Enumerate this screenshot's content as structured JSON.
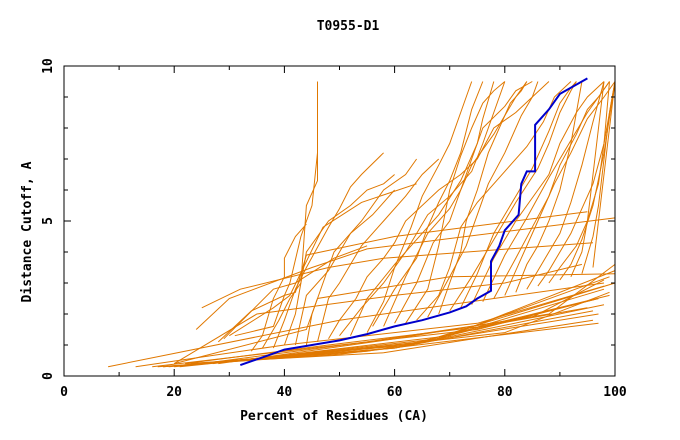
{
  "chart_data": {
    "type": "line",
    "title": "T0955-D1",
    "xlabel": "Percent of Residues (CA)",
    "ylabel": "Distance Cutoff, A",
    "xlim": [
      0,
      100
    ],
    "ylim": [
      0,
      10
    ],
    "x_ticks": [
      "0",
      "20",
      "40",
      "60",
      "80",
      "100"
    ],
    "y_ticks": [
      "0",
      "5",
      "10"
    ],
    "grid": false,
    "legend": "none",
    "colors": {
      "highlight": "#0000cc",
      "others": "#e07800",
      "axis": "#000000"
    },
    "highlight_series": {
      "x": [
        32,
        36,
        40,
        45,
        50,
        55,
        60,
        65,
        70,
        73,
        75,
        77.5,
        77.5,
        79,
        80,
        82.5,
        83,
        84,
        85.5,
        85.5,
        88,
        90,
        95
      ],
      "y": [
        0.35,
        0.6,
        0.85,
        1.0,
        1.15,
        1.35,
        1.6,
        1.8,
        2.05,
        2.25,
        2.5,
        2.75,
        3.7,
        4.2,
        4.7,
        5.2,
        6.2,
        6.6,
        6.6,
        8.1,
        8.6,
        9.1,
        9.6
      ]
    },
    "other_series": [
      {
        "x": [
          8,
          50,
          98
        ],
        "y": [
          0.3,
          1.8,
          3.0
        ]
      },
      {
        "x": [
          17,
          50,
          97
        ],
        "y": [
          0.3,
          0.7,
          1.7
        ]
      },
      {
        "x": [
          18,
          55,
          97
        ],
        "y": [
          0.3,
          0.8,
          2.0
        ]
      },
      {
        "x": [
          19,
          60,
          98
        ],
        "y": [
          0.3,
          0.9,
          2.3
        ]
      },
      {
        "x": [
          20,
          62,
          99
        ],
        "y": [
          0.3,
          1.0,
          2.6
        ]
      },
      {
        "x": [
          21,
          65,
          100
        ],
        "y": [
          0.3,
          1.1,
          3.0
        ]
      },
      {
        "x": [
          22,
          58,
          96
        ],
        "y": [
          0.4,
          0.75,
          1.8
        ]
      },
      {
        "x": [
          23,
          60,
          96
        ],
        "y": [
          0.4,
          0.9,
          2.1
        ]
      },
      {
        "x": [
          24,
          63,
          97
        ],
        "y": [
          0.4,
          1.0,
          2.5
        ]
      },
      {
        "x": [
          25,
          66,
          98
        ],
        "y": [
          0.4,
          1.1,
          2.8
        ]
      },
      {
        "x": [
          26,
          68,
          99
        ],
        "y": [
          0.4,
          1.2,
          3.2
        ]
      },
      {
        "x": [
          27,
          70,
          100
        ],
        "y": [
          0.4,
          1.3,
          3.4
        ]
      },
      {
        "x": [
          13,
          40,
          75,
          98
        ],
        "y": [
          0.3,
          1.0,
          1.7,
          2.9
        ]
      },
      {
        "x": [
          16,
          45,
          75,
          97
        ],
        "y": [
          0.3,
          0.9,
          1.5,
          2.5
        ]
      },
      {
        "x": [
          18,
          50,
          80,
          99
        ],
        "y": [
          0.3,
          0.8,
          1.4,
          2.7
        ]
      },
      {
        "x": [
          22,
          48,
          76,
          95
        ],
        "y": [
          0.4,
          1.0,
          1.6,
          2.2
        ]
      },
      {
        "x": [
          25,
          55,
          85,
          98
        ],
        "y": [
          0.4,
          1.1,
          1.9,
          3.1
        ]
      },
      {
        "x": [
          28,
          60,
          88,
          100
        ],
        "y": [
          0.4,
          1.2,
          2.0,
          3.6
        ]
      },
      {
        "x": [
          20,
          35,
          60,
          80,
          94
        ],
        "y": [
          0.4,
          2.0,
          2.6,
          3.0,
          3.6
        ]
      },
      {
        "x": [
          20,
          44,
          46,
          70,
          100
        ],
        "y": [
          0.4,
          1.5,
          2.5,
          3.2,
          3.3
        ]
      },
      {
        "x": [
          24,
          30,
          45,
          55,
          100
        ],
        "y": [
          1.5,
          2.5,
          3.5,
          4.1,
          5.1
        ]
      },
      {
        "x": [
          25,
          32,
          48,
          58,
          96
        ],
        "y": [
          2.2,
          2.8,
          3.5,
          3.8,
          4.3
        ]
      },
      {
        "x": [
          28,
          34,
          40,
          42,
          44,
          60,
          95
        ],
        "y": [
          1.1,
          2.1,
          2.6,
          2.7,
          3.9,
          4.5,
          5.3
        ]
      },
      {
        "x": [
          29,
          38,
          42,
          49,
          55
        ],
        "y": [
          1.2,
          2.8,
          3.0,
          3.8,
          4.2
        ]
      },
      {
        "x": [
          30,
          38,
          41,
          47,
          54,
          64
        ],
        "y": [
          1.3,
          2.2,
          2.6,
          4.8,
          5.6,
          6.2
        ]
      },
      {
        "x": [
          31,
          38,
          40,
          41,
          43,
          45,
          46,
          46
        ],
        "y": [
          1.3,
          1.6,
          2.6,
          3.0,
          4.5,
          5.5,
          7.2,
          9.5
        ]
      },
      {
        "x": [
          34,
          36,
          38,
          40,
          40,
          42,
          44
        ],
        "y": [
          0.8,
          1.3,
          2.5,
          3.2,
          3.8,
          4.5,
          4.9
        ]
      },
      {
        "x": [
          36,
          39,
          41,
          43,
          44,
          46,
          46
        ],
        "y": [
          0.9,
          1.8,
          2.5,
          3.0,
          5.5,
          6.3,
          9.5
        ]
      },
      {
        "x": [
          38,
          40,
          42,
          44,
          48,
          50,
          52,
          54,
          58
        ],
        "y": [
          0.9,
          1.8,
          2.8,
          3.5,
          4.8,
          5.4,
          6.1,
          6.5,
          7.2
        ]
      },
      {
        "x": [
          40,
          42,
          44,
          48,
          52,
          55,
          58,
          60
        ],
        "y": [
          1.0,
          2.0,
          4.0,
          5.0,
          5.5,
          6.0,
          6.2,
          6.5
        ]
      },
      {
        "x": [
          42,
          44,
          48,
          52,
          56,
          60
        ],
        "y": [
          1.0,
          2.6,
          3.4,
          4.6,
          5.2,
          6.0
        ]
      },
      {
        "x": [
          44,
          45,
          47,
          49,
          54,
          58,
          62,
          64
        ],
        "y": [
          1.0,
          2.0,
          3.0,
          4.0,
          5.0,
          6.0,
          6.5,
          7.0
        ]
      },
      {
        "x": [
          46,
          48,
          50,
          54,
          58,
          62,
          65,
          68
        ],
        "y": [
          1.1,
          2.5,
          3.0,
          4.2,
          5.0,
          5.8,
          6.5,
          7.0
        ]
      },
      {
        "x": [
          48,
          50,
          53,
          55,
          58,
          60,
          62,
          68,
          72,
          75,
          78,
          82,
          85,
          88
        ],
        "y": [
          1.2,
          1.8,
          2.5,
          3.2,
          3.8,
          4.3,
          5.0,
          6.0,
          6.5,
          7.0,
          8.0,
          8.5,
          9.0,
          9.5
        ]
      },
      {
        "x": [
          50,
          54,
          58,
          62,
          66,
          70,
          74,
          76,
          78,
          80
        ],
        "y": [
          1.3,
          2.2,
          3.0,
          4.0,
          5.2,
          5.8,
          6.6,
          7.5,
          8.5,
          9.5
        ]
      },
      {
        "x": [
          52,
          55,
          60,
          64,
          68,
          72,
          75,
          76,
          78
        ],
        "y": [
          1.3,
          2.5,
          3.6,
          4.4,
          5.2,
          6.3,
          7.5,
          8.3,
          9.5
        ]
      },
      {
        "x": [
          55,
          58,
          60,
          63,
          65,
          68,
          70,
          72,
          74
        ],
        "y": [
          1.4,
          2.4,
          3.5,
          4.8,
          5.8,
          6.8,
          7.5,
          8.5,
          9.5
        ]
      },
      {
        "x": [
          56,
          60,
          64,
          66,
          68,
          70,
          72,
          74,
          76
        ],
        "y": [
          1.6,
          2.8,
          3.8,
          4.8,
          5.6,
          6.3,
          7.2,
          8.6,
          9.5
        ]
      },
      {
        "x": [
          58,
          62,
          66,
          70,
          72,
          74,
          76,
          80,
          82,
          85
        ],
        "y": [
          1.6,
          3.2,
          4.6,
          5.4,
          6.0,
          7.0,
          8.0,
          8.7,
          9.2,
          9.5
        ]
      },
      {
        "x": [
          60,
          64,
          67,
          70,
          72,
          74,
          78,
          80,
          82,
          84
        ],
        "y": [
          1.7,
          3.0,
          4.3,
          5.0,
          6.0,
          6.8,
          7.8,
          8.4,
          9.0,
          9.5
        ]
      },
      {
        "x": [
          62,
          66,
          68,
          70,
          72,
          74,
          76,
          78,
          80
        ],
        "y": [
          1.7,
          2.8,
          4.2,
          6.0,
          7.1,
          8.0,
          8.8,
          9.2,
          9.5
        ]
      },
      {
        "x": [
          64,
          68,
          70,
          72,
          75,
          80,
          84,
          87,
          89,
          92
        ],
        "y": [
          1.8,
          2.6,
          3.5,
          4.8,
          5.6,
          6.6,
          7.4,
          8.2,
          9.0,
          9.5
        ]
      },
      {
        "x": [
          66,
          70,
          73,
          75,
          77,
          80,
          83,
          85,
          86
        ],
        "y": [
          1.9,
          3.2,
          4.2,
          5.2,
          6.2,
          7.2,
          8.4,
          9.0,
          9.5
        ]
      },
      {
        "x": [
          68,
          70,
          72,
          73,
          75,
          77,
          79,
          81,
          83,
          84
        ],
        "y": [
          2.0,
          3.0,
          4.0,
          5.0,
          6.0,
          7.2,
          8.0,
          8.8,
          9.2,
          9.5
        ]
      },
      {
        "x": [
          70,
          74,
          78,
          82,
          86,
          88,
          90,
          92,
          93
        ],
        "y": [
          2.1,
          3.2,
          4.4,
          5.6,
          6.7,
          7.5,
          8.5,
          9.2,
          9.5
        ]
      },
      {
        "x": [
          72,
          75,
          78,
          82,
          85,
          88,
          90,
          92,
          93
        ],
        "y": [
          2.2,
          3.3,
          4.6,
          5.8,
          6.7,
          7.9,
          8.8,
          9.3,
          9.5
        ]
      },
      {
        "x": [
          74,
          78,
          82,
          86,
          88,
          90,
          93,
          95,
          98
        ],
        "y": [
          2.3,
          3.8,
          5.0,
          6.0,
          6.5,
          7.5,
          8.5,
          9.0,
          9.5
        ]
      },
      {
        "x": [
          76,
          80,
          84,
          88,
          92,
          95,
          97,
          99
        ],
        "y": [
          2.4,
          3.9,
          5.1,
          6.4,
          7.6,
          8.5,
          9.0,
          9.5
        ]
      },
      {
        "x": [
          78,
          82,
          85,
          88,
          90,
          93,
          95,
          97,
          99
        ],
        "y": [
          2.5,
          3.8,
          4.8,
          5.8,
          6.8,
          7.8,
          8.6,
          9.0,
          9.5
        ]
      },
      {
        "x": [
          80,
          83,
          86,
          89,
          92,
          95,
          98,
          100
        ],
        "y": [
          2.6,
          3.8,
          5.0,
          6.2,
          7.2,
          8.3,
          9.0,
          9.5
        ]
      },
      {
        "x": [
          82,
          84,
          86,
          88,
          90,
          92,
          94
        ],
        "y": [
          2.7,
          3.6,
          4.2,
          5.0,
          6.0,
          7.5,
          9.5
        ]
      },
      {
        "x": [
          84,
          86,
          88,
          90,
          92,
          94,
          96,
          98
        ],
        "y": [
          2.8,
          3.4,
          4.0,
          4.6,
          5.6,
          6.8,
          8.2,
          9.5
        ]
      },
      {
        "x": [
          86,
          88,
          90,
          92,
          94,
          96,
          98,
          100
        ],
        "y": [
          2.9,
          3.4,
          4.0,
          4.6,
          5.4,
          6.2,
          7.5,
          9.5
        ]
      },
      {
        "x": [
          88,
          90,
          93,
          95,
          97,
          98,
          99
        ],
        "y": [
          3.0,
          3.5,
          4.2,
          5.0,
          6.2,
          7.5,
          9.5
        ]
      },
      {
        "x": [
          90,
          92,
          94,
          96,
          98,
          100
        ],
        "y": [
          3.1,
          3.6,
          4.4,
          5.5,
          7.2,
          9.5
        ]
      },
      {
        "x": [
          92,
          94,
          95,
          96,
          97,
          98
        ],
        "y": [
          3.2,
          4.0,
          5.0,
          6.5,
          8.0,
          9.5
        ]
      },
      {
        "x": [
          94,
          96,
          97,
          98,
          99,
          100
        ],
        "y": [
          3.3,
          4.5,
          5.5,
          7.0,
          8.5,
          9.5
        ]
      },
      {
        "x": [
          96,
          97,
          98,
          99,
          100
        ],
        "y": [
          3.5,
          5.0,
          6.5,
          8.0,
          9.5
        ]
      }
    ]
  }
}
